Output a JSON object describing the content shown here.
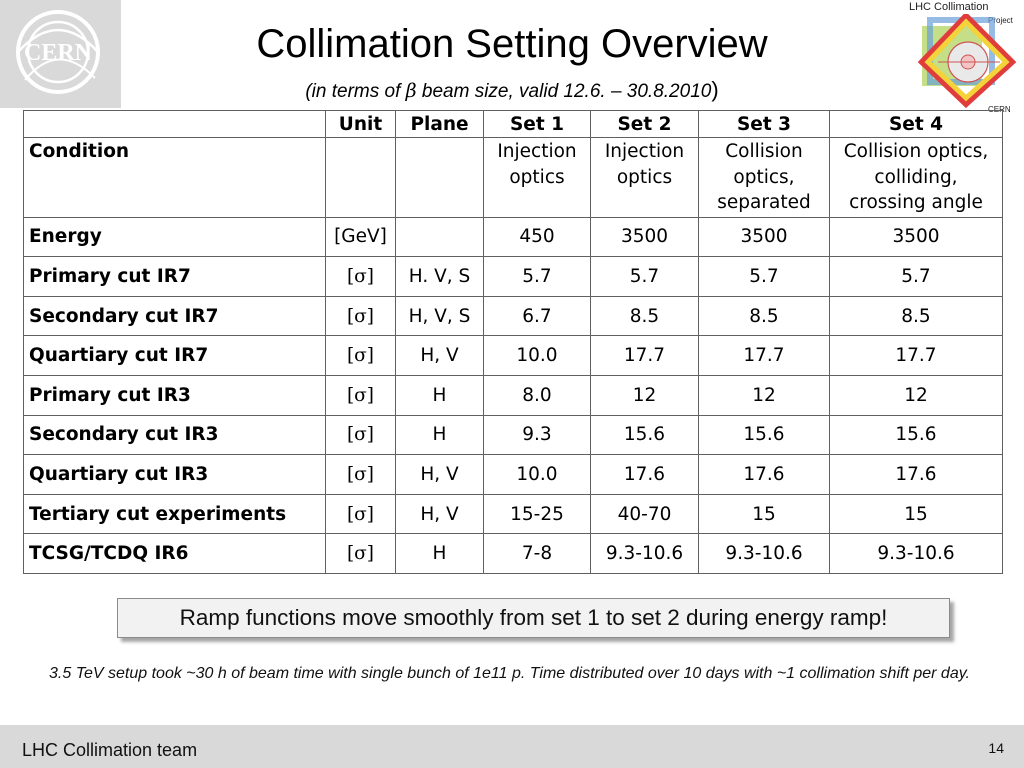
{
  "header": {
    "title": "Collimation Setting Overview",
    "subtitle_prefix": "(in terms of",
    "subtitle_symbol": "β",
    "subtitle_suffix": "beam size, valid 12.6. – 30.8.2010",
    "subtitle_close": ")"
  },
  "logos": {
    "cern_text": "CERN",
    "lhc_title": "LHC Collimation",
    "lhc_project": "Project",
    "lhc_cern": "CERN"
  },
  "table": {
    "headers": [
      "",
      "Unit",
      "Plane",
      "Set 1",
      "Set 2",
      "Set 3",
      "Set 4"
    ],
    "condition": {
      "label": "Condition",
      "unit": "",
      "plane": "",
      "set1": [
        "Injection",
        "optics"
      ],
      "set2": [
        "Injection",
        "optics"
      ],
      "set3": [
        "Collision",
        "optics,",
        "separated"
      ],
      "set4": [
        "Collision optics,",
        "colliding,",
        "crossing angle"
      ]
    },
    "rows": [
      {
        "label": "Energy",
        "unit": "[GeV]",
        "plane": "",
        "set1": "450",
        "set2": "3500",
        "set3": "3500",
        "set4": "3500"
      },
      {
        "label": "Primary cut IR7",
        "unit": "[σ]",
        "plane": "H. V, S",
        "set1": "5.7",
        "set2": "5.7",
        "set3": "5.7",
        "set4": "5.7"
      },
      {
        "label": "Secondary cut IR7",
        "unit": "[σ]",
        "plane": "H, V, S",
        "set1": "6.7",
        "set2": "8.5",
        "set3": "8.5",
        "set4": "8.5"
      },
      {
        "label": "Quartiary cut IR7",
        "unit": "[σ]",
        "plane": "H, V",
        "set1": "10.0",
        "set2": "17.7",
        "set3": "17.7",
        "set4": "17.7"
      },
      {
        "label": "Primary cut IR3",
        "unit": "[σ]",
        "plane": "H",
        "set1": "8.0",
        "set2": "12",
        "set3": "12",
        "set4": "12"
      },
      {
        "label": "Secondary cut IR3",
        "unit": "[σ]",
        "plane": "H",
        "set1": "9.3",
        "set2": "15.6",
        "set3": "15.6",
        "set4": "15.6"
      },
      {
        "label": "Quartiary cut IR3",
        "unit": "[σ]",
        "plane": "H, V",
        "set1": "10.0",
        "set2": "17.6",
        "set3": "17.6",
        "set4": "17.6"
      },
      {
        "label": "Tertiary cut experiments",
        "unit": "[σ]",
        "plane": "H, V",
        "set1": "15-25",
        "set2": "40-70",
        "set3": "15",
        "set4": "15"
      },
      {
        "label": "TCSG/TCDQ IR6",
        "unit": "[σ]",
        "plane": "H",
        "set1": "7-8",
        "set2": "9.3-10.6",
        "set3": "9.3-10.6",
        "set4": "9.3-10.6"
      }
    ]
  },
  "callout": "Ramp functions move smoothly from set 1 to set 2 during energy ramp!",
  "note": "3.5 TeV setup took ~30 h of beam time with single bunch of 1e11 p. Time distributed over 10 days with ~1 collimation shift per day.",
  "footer": {
    "team": "LHC Collimation team",
    "page_number": "14"
  },
  "colors": {
    "footer_bg": "#d9d9d9",
    "logo_bg": "#d9d9d9",
    "table_border": "#606060",
    "callout_bg": "#f2f2f2"
  }
}
